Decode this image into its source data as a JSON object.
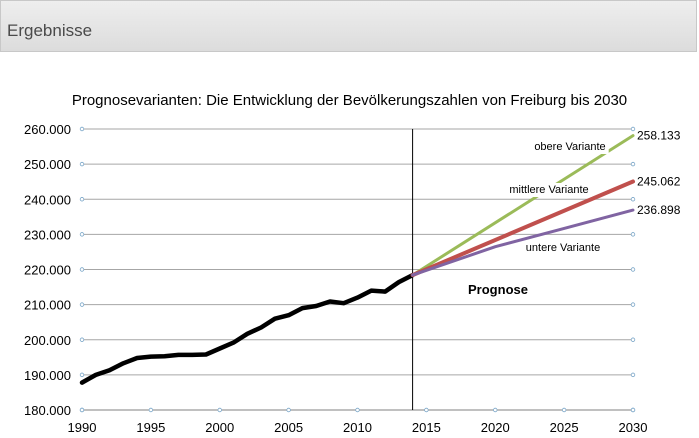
{
  "header": {
    "title": "Ergebnisse"
  },
  "chart_data": {
    "type": "line",
    "title": "Prognosevarianten:  Die Entwicklung der Bevölkerungszahlen  von Freiburg bis 2030",
    "xlabel": "",
    "ylabel": "",
    "xlim": [
      1990,
      2030
    ],
    "ylim": [
      180000,
      260000
    ],
    "x_ticks": [
      "1990",
      "1995",
      "2000",
      "2005",
      "2010",
      "2015",
      "2020",
      "2025",
      "2030"
    ],
    "y_ticks": [
      "180.000",
      "190.000",
      "200.000",
      "210.000",
      "220.000",
      "230.000",
      "240.000",
      "250.000",
      "260.000"
    ],
    "grid": true,
    "divider_year": 2014,
    "series": [
      {
        "name": "",
        "color": "#000000",
        "x": [
          1990,
          1991,
          1992,
          1993,
          1994,
          1995,
          1996,
          1997,
          1998,
          1999,
          2000,
          2001,
          2002,
          2003,
          2004,
          2005,
          2006,
          2007,
          2008,
          2009,
          2010,
          2011,
          2012,
          2013,
          2014
        ],
        "values": [
          187800,
          190000,
          191300,
          193300,
          194800,
          195200,
          195300,
          195700,
          195700,
          195800,
          197500,
          199200,
          201700,
          203500,
          206000,
          207000,
          209000,
          209600,
          210900,
          210400,
          212000,
          214000,
          213700,
          216400,
          218400
        ]
      },
      {
        "name": "obere Variante",
        "color": "#9bbb59",
        "x": [
          2014,
          2030
        ],
        "values": [
          218400,
          258133
        ]
      },
      {
        "name": "mittlere Variante",
        "color": "#c0504d",
        "x": [
          2014,
          2030
        ],
        "values": [
          218400,
          245062
        ]
      },
      {
        "name": "untere Variante",
        "color": "#8064a2",
        "x": [
          2014,
          2020,
          2025,
          2030
        ],
        "values": [
          218400,
          226500,
          231700,
          236898
        ]
      }
    ],
    "end_labels": [
      "258.133",
      "245.062",
      "236.898"
    ],
    "annotations": {
      "upper": "obere Variante",
      "middle": "mittlere Variante",
      "lower": "untere Variante",
      "prognose": "Prognose"
    }
  }
}
